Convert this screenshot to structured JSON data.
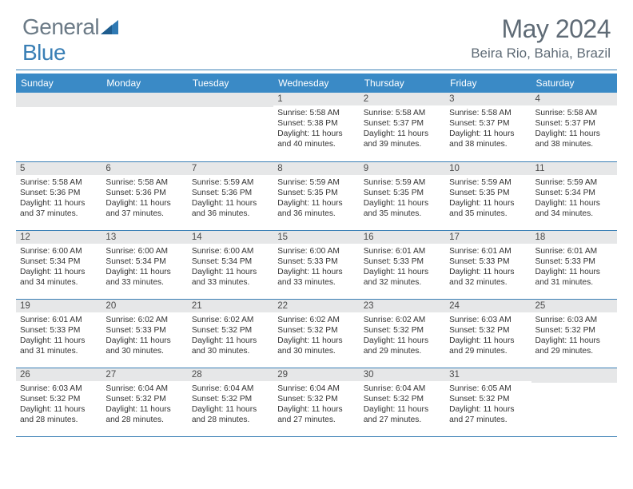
{
  "brand": {
    "word1": "General",
    "word2": "Blue"
  },
  "title": "May 2024",
  "location": "Beira Rio, Bahia, Brazil",
  "colors": {
    "header_bg": "#3a8ac6",
    "rule": "#3a7fb5",
    "daynum_bg": "#e6e7e8",
    "text_muted": "#5f6b76",
    "body_text": "#333333"
  },
  "weekdays": [
    "Sunday",
    "Monday",
    "Tuesday",
    "Wednesday",
    "Thursday",
    "Friday",
    "Saturday"
  ],
  "weeks": [
    [
      null,
      null,
      null,
      {
        "n": "1",
        "sr": "5:58 AM",
        "ss": "5:38 PM",
        "dl": "11 hours and 40 minutes."
      },
      {
        "n": "2",
        "sr": "5:58 AM",
        "ss": "5:37 PM",
        "dl": "11 hours and 39 minutes."
      },
      {
        "n": "3",
        "sr": "5:58 AM",
        "ss": "5:37 PM",
        "dl": "11 hours and 38 minutes."
      },
      {
        "n": "4",
        "sr": "5:58 AM",
        "ss": "5:37 PM",
        "dl": "11 hours and 38 minutes."
      }
    ],
    [
      {
        "n": "5",
        "sr": "5:58 AM",
        "ss": "5:36 PM",
        "dl": "11 hours and 37 minutes."
      },
      {
        "n": "6",
        "sr": "5:58 AM",
        "ss": "5:36 PM",
        "dl": "11 hours and 37 minutes."
      },
      {
        "n": "7",
        "sr": "5:59 AM",
        "ss": "5:36 PM",
        "dl": "11 hours and 36 minutes."
      },
      {
        "n": "8",
        "sr": "5:59 AM",
        "ss": "5:35 PM",
        "dl": "11 hours and 36 minutes."
      },
      {
        "n": "9",
        "sr": "5:59 AM",
        "ss": "5:35 PM",
        "dl": "11 hours and 35 minutes."
      },
      {
        "n": "10",
        "sr": "5:59 AM",
        "ss": "5:35 PM",
        "dl": "11 hours and 35 minutes."
      },
      {
        "n": "11",
        "sr": "5:59 AM",
        "ss": "5:34 PM",
        "dl": "11 hours and 34 minutes."
      }
    ],
    [
      {
        "n": "12",
        "sr": "6:00 AM",
        "ss": "5:34 PM",
        "dl": "11 hours and 34 minutes."
      },
      {
        "n": "13",
        "sr": "6:00 AM",
        "ss": "5:34 PM",
        "dl": "11 hours and 33 minutes."
      },
      {
        "n": "14",
        "sr": "6:00 AM",
        "ss": "5:34 PM",
        "dl": "11 hours and 33 minutes."
      },
      {
        "n": "15",
        "sr": "6:00 AM",
        "ss": "5:33 PM",
        "dl": "11 hours and 33 minutes."
      },
      {
        "n": "16",
        "sr": "6:01 AM",
        "ss": "5:33 PM",
        "dl": "11 hours and 32 minutes."
      },
      {
        "n": "17",
        "sr": "6:01 AM",
        "ss": "5:33 PM",
        "dl": "11 hours and 32 minutes."
      },
      {
        "n": "18",
        "sr": "6:01 AM",
        "ss": "5:33 PM",
        "dl": "11 hours and 31 minutes."
      }
    ],
    [
      {
        "n": "19",
        "sr": "6:01 AM",
        "ss": "5:33 PM",
        "dl": "11 hours and 31 minutes."
      },
      {
        "n": "20",
        "sr": "6:02 AM",
        "ss": "5:33 PM",
        "dl": "11 hours and 30 minutes."
      },
      {
        "n": "21",
        "sr": "6:02 AM",
        "ss": "5:32 PM",
        "dl": "11 hours and 30 minutes."
      },
      {
        "n": "22",
        "sr": "6:02 AM",
        "ss": "5:32 PM",
        "dl": "11 hours and 30 minutes."
      },
      {
        "n": "23",
        "sr": "6:02 AM",
        "ss": "5:32 PM",
        "dl": "11 hours and 29 minutes."
      },
      {
        "n": "24",
        "sr": "6:03 AM",
        "ss": "5:32 PM",
        "dl": "11 hours and 29 minutes."
      },
      {
        "n": "25",
        "sr": "6:03 AM",
        "ss": "5:32 PM",
        "dl": "11 hours and 29 minutes."
      }
    ],
    [
      {
        "n": "26",
        "sr": "6:03 AM",
        "ss": "5:32 PM",
        "dl": "11 hours and 28 minutes."
      },
      {
        "n": "27",
        "sr": "6:04 AM",
        "ss": "5:32 PM",
        "dl": "11 hours and 28 minutes."
      },
      {
        "n": "28",
        "sr": "6:04 AM",
        "ss": "5:32 PM",
        "dl": "11 hours and 28 minutes."
      },
      {
        "n": "29",
        "sr": "6:04 AM",
        "ss": "5:32 PM",
        "dl": "11 hours and 27 minutes."
      },
      {
        "n": "30",
        "sr": "6:04 AM",
        "ss": "5:32 PM",
        "dl": "11 hours and 27 minutes."
      },
      {
        "n": "31",
        "sr": "6:05 AM",
        "ss": "5:32 PM",
        "dl": "11 hours and 27 minutes."
      },
      null
    ]
  ],
  "labels": {
    "sunrise": "Sunrise: ",
    "sunset": "Sunset: ",
    "daylight": "Daylight: "
  }
}
